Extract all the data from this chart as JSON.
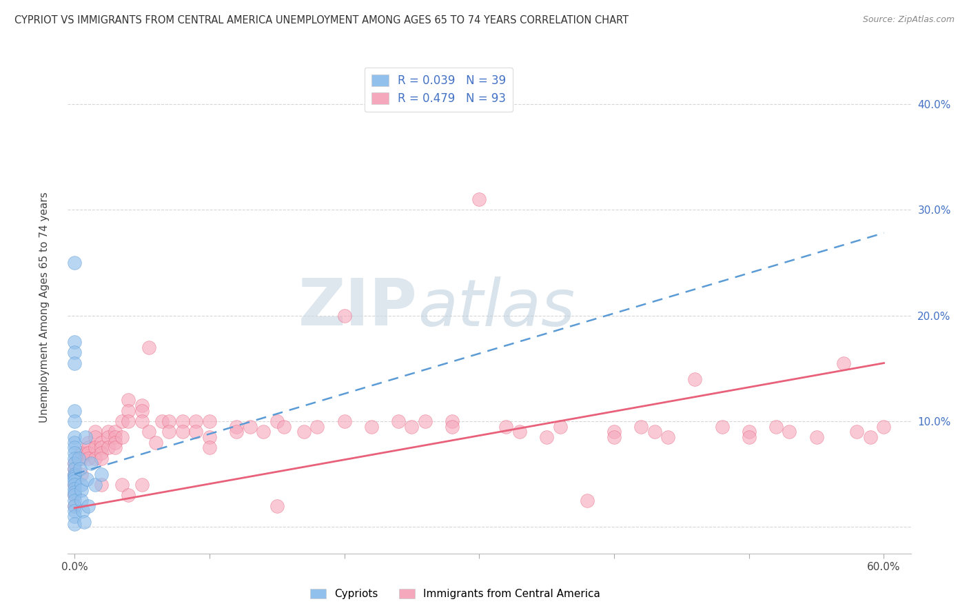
{
  "title": "CYPRIOT VS IMMIGRANTS FROM CENTRAL AMERICA UNEMPLOYMENT AMONG AGES 65 TO 74 YEARS CORRELATION CHART",
  "source": "Source: ZipAtlas.com",
  "ylabel": "Unemployment Among Ages 65 to 74 years",
  "xlim": [
    -0.005,
    0.62
  ],
  "ylim": [
    -0.025,
    0.44
  ],
  "xticks": [
    0.0,
    0.1,
    0.2,
    0.3,
    0.4,
    0.5,
    0.6
  ],
  "xtick_labels": [
    "0.0%",
    "",
    "",
    "",
    "",
    "",
    "60.0%"
  ],
  "yticks": [
    0.0,
    0.1,
    0.2,
    0.3,
    0.4
  ],
  "right_ytick_labels": [
    "",
    "10.0%",
    "20.0%",
    "30.0%",
    "40.0%"
  ],
  "legend_label1": "Cypriots",
  "legend_label2": "Immigrants from Central America",
  "blue_color": "#92C0EC",
  "pink_color": "#F5A8BC",
  "blue_line_color": "#5B9BD5",
  "pink_line_color": "#E8607A",
  "watermark_zip": "ZIP",
  "watermark_atlas": "atlas",
  "grid_color": "#CCCCCC",
  "background_color": "#FFFFFF",
  "blue_scatter_x": [
    0.0,
    0.0,
    0.0,
    0.0,
    0.0,
    0.0,
    0.0,
    0.0,
    0.0,
    0.0,
    0.0,
    0.0,
    0.0,
    0.0,
    0.0,
    0.0,
    0.0,
    0.0,
    0.0,
    0.0,
    0.0,
    0.0,
    0.0,
    0.0,
    0.0,
    0.0,
    0.003,
    0.004,
    0.005,
    0.005,
    0.005,
    0.006,
    0.007,
    0.008,
    0.009,
    0.01,
    0.012,
    0.015,
    0.02
  ],
  "blue_scatter_y": [
    0.25,
    0.175,
    0.165,
    0.155,
    0.11,
    0.1,
    0.085,
    0.08,
    0.075,
    0.07,
    0.065,
    0.06,
    0.055,
    0.05,
    0.048,
    0.046,
    0.043,
    0.04,
    0.036,
    0.033,
    0.03,
    0.025,
    0.02,
    0.015,
    0.01,
    0.003,
    0.065,
    0.055,
    0.04,
    0.035,
    0.025,
    0.015,
    0.005,
    0.085,
    0.045,
    0.02,
    0.06,
    0.04,
    0.05
  ],
  "pink_scatter_x": [
    0.0,
    0.0,
    0.0,
    0.0,
    0.0,
    0.0,
    0.005,
    0.005,
    0.005,
    0.008,
    0.01,
    0.01,
    0.01,
    0.01,
    0.015,
    0.015,
    0.015,
    0.015,
    0.02,
    0.02,
    0.02,
    0.02,
    0.02,
    0.025,
    0.025,
    0.025,
    0.03,
    0.03,
    0.03,
    0.03,
    0.035,
    0.035,
    0.035,
    0.04,
    0.04,
    0.04,
    0.04,
    0.05,
    0.05,
    0.05,
    0.05,
    0.055,
    0.055,
    0.06,
    0.065,
    0.07,
    0.07,
    0.08,
    0.08,
    0.09,
    0.09,
    0.1,
    0.1,
    0.1,
    0.12,
    0.12,
    0.13,
    0.14,
    0.15,
    0.15,
    0.155,
    0.17,
    0.18,
    0.2,
    0.2,
    0.22,
    0.24,
    0.25,
    0.26,
    0.28,
    0.28,
    0.3,
    0.32,
    0.33,
    0.35,
    0.36,
    0.38,
    0.4,
    0.4,
    0.42,
    0.43,
    0.44,
    0.46,
    0.48,
    0.5,
    0.5,
    0.52,
    0.53,
    0.55,
    0.57,
    0.58,
    0.59,
    0.6
  ],
  "pink_scatter_y": [
    0.06,
    0.055,
    0.05,
    0.04,
    0.03,
    0.02,
    0.07,
    0.065,
    0.05,
    0.07,
    0.08,
    0.075,
    0.07,
    0.065,
    0.09,
    0.085,
    0.075,
    0.065,
    0.08,
    0.075,
    0.07,
    0.065,
    0.04,
    0.09,
    0.085,
    0.075,
    0.09,
    0.085,
    0.08,
    0.075,
    0.1,
    0.085,
    0.04,
    0.12,
    0.11,
    0.1,
    0.03,
    0.115,
    0.11,
    0.1,
    0.04,
    0.17,
    0.09,
    0.08,
    0.1,
    0.1,
    0.09,
    0.1,
    0.09,
    0.1,
    0.09,
    0.1,
    0.085,
    0.075,
    0.095,
    0.09,
    0.095,
    0.09,
    0.1,
    0.02,
    0.095,
    0.09,
    0.095,
    0.2,
    0.1,
    0.095,
    0.1,
    0.095,
    0.1,
    0.1,
    0.095,
    0.31,
    0.095,
    0.09,
    0.085,
    0.095,
    0.025,
    0.09,
    0.085,
    0.095,
    0.09,
    0.085,
    0.14,
    0.095,
    0.09,
    0.085,
    0.095,
    0.09,
    0.085,
    0.155,
    0.09,
    0.085,
    0.095
  ]
}
